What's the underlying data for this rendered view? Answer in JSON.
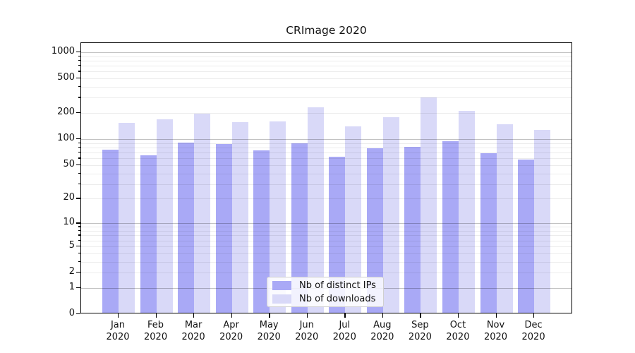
{
  "chart_data": {
    "type": "bar",
    "title": "CRImage 2020",
    "categories": [
      "Jan",
      "Feb",
      "Mar",
      "Apr",
      "May",
      "Jun",
      "Jul",
      "Aug",
      "Sep",
      "Oct",
      "Nov",
      "Dec"
    ],
    "category_year": "2020",
    "series": [
      {
        "name": "Nb of distinct IPs",
        "color": "#a9a9f6",
        "values": [
          73,
          63,
          87,
          84,
          72,
          86,
          60,
          76,
          78,
          91,
          66,
          56
        ]
      },
      {
        "name": "Nb of downloads",
        "color": "#d9d9f8",
        "values": [
          148,
          164,
          190,
          152,
          155,
          225,
          136,
          173,
          290,
          205,
          144,
          122
        ]
      }
    ],
    "xlabel": "",
    "ylabel": "",
    "y_scale": "log10(1+x)",
    "y_ticks_labeled": [
      0,
      1,
      2,
      5,
      10,
      20,
      50,
      100,
      200,
      500,
      1000
    ],
    "ylim": [
      0,
      1270
    ],
    "grid": "on",
    "gridline_major_values": [
      1,
      10,
      100,
      1000
    ],
    "legend_position": "lower center",
    "colors": {
      "bar_distinct_ips": "#a9a9f6",
      "bar_downloads": "#d9d9f8",
      "grid_major": "#c2c2c2",
      "grid_minor": "#ebebeb",
      "axis": "#000000"
    }
  }
}
